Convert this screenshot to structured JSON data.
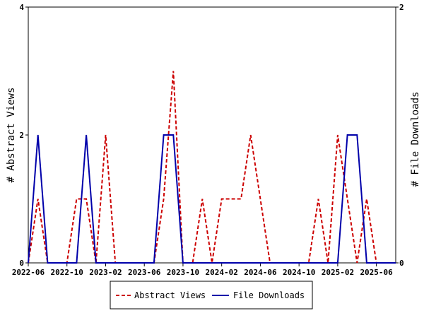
{
  "chart_data": {
    "type": "line",
    "title": "",
    "xlabel": "",
    "ylabel": "# Abstract Views",
    "y2label": "# File Downloads",
    "x_tick_labels": [
      "2022-06",
      "2022-10",
      "2023-02",
      "2023-06",
      "2023-10",
      "2024-02",
      "2024-06",
      "2024-10",
      "2025-02",
      "2025-06"
    ],
    "ylim": [
      0,
      4
    ],
    "y_ticks": [
      "0",
      "2",
      "4"
    ],
    "y2lim": [
      0,
      2
    ],
    "y2_ticks": [
      "0",
      "2"
    ],
    "grid": false,
    "legend_position": "bottom",
    "x": [
      "2022-06",
      "2022-07",
      "2022-08",
      "2022-09",
      "2022-10",
      "2022-11",
      "2022-12",
      "2023-01",
      "2023-02",
      "2023-03",
      "2023-04",
      "2023-05",
      "2023-06",
      "2023-07",
      "2023-08",
      "2023-09",
      "2023-10",
      "2023-11",
      "2023-12",
      "2024-01",
      "2024-02",
      "2024-03",
      "2024-04",
      "2024-05",
      "2024-06",
      "2024-07",
      "2024-08",
      "2024-09",
      "2024-10",
      "2024-11",
      "2024-12",
      "2025-01",
      "2025-02",
      "2025-03",
      "2025-04",
      "2025-05",
      "2025-06",
      "2025-07",
      "2025-08"
    ],
    "series": [
      {
        "name": "Abstract Views",
        "axis": "left",
        "color": "#cc0000",
        "style": "dashed",
        "values": [
          0,
          1,
          0,
          0,
          0,
          1,
          1,
          0,
          2,
          0,
          0,
          0,
          0,
          0,
          1,
          3,
          0,
          0,
          1,
          0,
          1,
          1,
          1,
          2,
          1,
          0,
          0,
          0,
          0,
          0,
          1,
          0,
          2,
          1,
          0,
          1,
          0,
          0,
          0
        ]
      },
      {
        "name": "File Downloads",
        "axis": "right",
        "color": "#0000aa",
        "style": "solid",
        "values": [
          0,
          1,
          0,
          0,
          0,
          0,
          1,
          0,
          0,
          0,
          0,
          0,
          0,
          0,
          1,
          1,
          0,
          0,
          0,
          0,
          0,
          0,
          0,
          0,
          0,
          0,
          0,
          0,
          0,
          0,
          0,
          0,
          0,
          1,
          1,
          0,
          0,
          0,
          0
        ]
      }
    ]
  }
}
